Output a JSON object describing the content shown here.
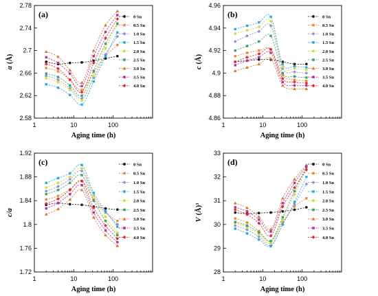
{
  "series_styles": [
    {
      "name": "0 Sn",
      "color": "#1a1a1a",
      "marker": "circle"
    },
    {
      "name": "0.5 Sn",
      "color": "#e88a3c",
      "marker": "square"
    },
    {
      "name": "1.0 Sn",
      "color": "#8e8fd6",
      "marker": "diamond"
    },
    {
      "name": "1.5 Sn",
      "color": "#2aa9e0",
      "marker": "square"
    },
    {
      "name": "2.0 Sn",
      "color": "#d8d63c",
      "marker": "diamond"
    },
    {
      "name": "2.5 Sn",
      "color": "#3d9e6e",
      "marker": "square"
    },
    {
      "name": "3.0 Sn",
      "color": "#d47a2a",
      "marker": "triangle"
    },
    {
      "name": "3.5 Sn",
      "color": "#b0349a",
      "marker": "square"
    },
    {
      "name": "4.0 Sn",
      "color": "#e6262e",
      "marker": "diamond"
    }
  ],
  "chart_data": [
    {
      "type": "line",
      "panel_label": "(a)",
      "title": "",
      "xlabel": "Aging time (h)",
      "ylabel_main": "a",
      "ylabel_unit": "(Å)",
      "xscale": "log",
      "xlim": [
        1,
        1000
      ],
      "ylim": [
        2.58,
        2.78
      ],
      "xticks": [
        1,
        10,
        100
      ],
      "yticks": [
        2.58,
        2.62,
        2.66,
        2.7,
        2.74,
        2.78
      ],
      "yticklabels": [
        "2.58",
        "2.62",
        "2.66",
        "2.7",
        "2.74",
        "2.78"
      ],
      "legend_position": "right",
      "x": [
        2,
        4,
        8,
        16,
        32,
        64,
        128
      ],
      "series": [
        {
          "name": "0 Sn",
          "values": [
            2.68,
            2.676,
            2.678,
            2.679,
            2.682,
            2.686,
            2.69
          ]
        },
        {
          "name": "0.5 Sn",
          "values": [
            2.669,
            2.663,
            2.648,
            2.63,
            2.662,
            2.69,
            2.71
          ]
        },
        {
          "name": "1.0 Sn",
          "values": [
            2.655,
            2.648,
            2.633,
            2.615,
            2.652,
            2.693,
            2.725
          ]
        },
        {
          "name": "1.5 Sn",
          "values": [
            2.64,
            2.634,
            2.621,
            2.604,
            2.645,
            2.69,
            2.732
          ]
        },
        {
          "name": "2.0 Sn",
          "values": [
            2.651,
            2.644,
            2.63,
            2.611,
            2.655,
            2.704,
            2.746
          ]
        },
        {
          "name": "2.5 Sn",
          "values": [
            2.659,
            2.653,
            2.638,
            2.62,
            2.664,
            2.712,
            2.748
          ]
        },
        {
          "name": "3.0 Sn",
          "values": [
            2.698,
            2.689,
            2.665,
            2.643,
            2.7,
            2.745,
            2.77
          ]
        },
        {
          "name": "3.5 Sn",
          "values": [
            2.688,
            2.678,
            2.659,
            2.637,
            2.69,
            2.733,
            2.763
          ]
        },
        {
          "name": "4.0 Sn",
          "values": [
            2.676,
            2.668,
            2.648,
            2.626,
            2.678,
            2.722,
            2.756
          ]
        }
      ]
    },
    {
      "type": "line",
      "panel_label": "(b)",
      "title": "",
      "xlabel": "Aging time (h)",
      "ylabel_main": "c",
      "ylabel_unit": "(Å)",
      "xscale": "log",
      "xlim": [
        1,
        1000
      ],
      "ylim": [
        4.86,
        4.96
      ],
      "xticks": [
        1,
        10,
        100
      ],
      "yticks": [
        4.86,
        4.88,
        4.9,
        4.92,
        4.94,
        4.96
      ],
      "yticklabels": [
        "4.86",
        "4.88",
        "4.9",
        "4.92",
        "4.94",
        "4.96"
      ],
      "legend_position": "right",
      "x": [
        2,
        4,
        8,
        16,
        32,
        64,
        128
      ],
      "series": [
        {
          "name": "0 Sn",
          "values": [
            4.91,
            4.911,
            4.912,
            4.912,
            4.91,
            4.908,
            4.908
          ]
        },
        {
          "name": "0.5 Sn",
          "values": [
            4.915,
            4.918,
            4.92,
            4.921,
            4.898,
            4.894,
            4.893
          ]
        },
        {
          "name": "1.0 Sn",
          "values": [
            4.928,
            4.933,
            4.937,
            4.942,
            4.904,
            4.901,
            4.9
          ]
        },
        {
          "name": "1.5 Sn",
          "values": [
            4.939,
            4.942,
            4.945,
            4.95,
            4.908,
            4.906,
            4.905
          ]
        },
        {
          "name": "2.0 Sn",
          "values": [
            4.935,
            4.938,
            4.941,
            4.946,
            4.906,
            4.904,
            4.903
          ]
        },
        {
          "name": "2.5 Sn",
          "values": [
            4.92,
            4.924,
            4.928,
            4.933,
            4.9,
            4.897,
            4.896
          ]
        },
        {
          "name": "3.0 Sn",
          "values": [
            4.902,
            4.905,
            4.908,
            4.913,
            4.889,
            4.886,
            4.886
          ]
        },
        {
          "name": "3.5 Sn",
          "values": [
            4.907,
            4.911,
            4.914,
            4.918,
            4.892,
            4.889,
            4.889
          ]
        },
        {
          "name": "4.0 Sn",
          "values": [
            4.91,
            4.914,
            4.917,
            4.921,
            4.895,
            4.892,
            4.891
          ]
        }
      ]
    },
    {
      "type": "line",
      "panel_label": "(c)",
      "title": "",
      "xlabel": "Aging time (h)",
      "ylabel_main": "c/a",
      "ylabel_unit": "",
      "xscale": "log",
      "xlim": [
        1,
        1000
      ],
      "ylim": [
        1.72,
        1.92
      ],
      "xticks": [
        1,
        10,
        100
      ],
      "yticks": [
        1.72,
        1.76,
        1.8,
        1.84,
        1.88,
        1.92
      ],
      "yticklabels": [
        "1.72",
        "1.76",
        "1.8",
        "1.84",
        "1.88",
        "1.92"
      ],
      "legend_position": "right",
      "x": [
        2,
        4,
        8,
        16,
        32,
        64,
        128
      ],
      "series": [
        {
          "name": "0 Sn",
          "values": [
            1.833,
            1.836,
            1.834,
            1.833,
            1.83,
            1.827,
            1.825
          ]
        },
        {
          "name": "0.5 Sn",
          "values": [
            1.842,
            1.848,
            1.859,
            1.873,
            1.842,
            1.82,
            1.806
          ]
        },
        {
          "name": "1.0 Sn",
          "values": [
            1.856,
            1.864,
            1.876,
            1.89,
            1.848,
            1.821,
            1.8
          ]
        },
        {
          "name": "1.5 Sn",
          "values": [
            1.87,
            1.878,
            1.886,
            1.9,
            1.853,
            1.823,
            1.796
          ]
        },
        {
          "name": "2.0 Sn",
          "values": [
            1.862,
            1.87,
            1.88,
            1.894,
            1.848,
            1.813,
            1.786
          ]
        },
        {
          "name": "2.5 Sn",
          "values": [
            1.851,
            1.858,
            1.87,
            1.883,
            1.84,
            1.806,
            1.782
          ]
        },
        {
          "name": "3.0 Sn",
          "values": [
            1.817,
            1.826,
            1.842,
            1.858,
            1.812,
            1.782,
            1.764
          ]
        },
        {
          "name": "3.5 Sn",
          "values": [
            1.827,
            1.836,
            1.851,
            1.866,
            1.82,
            1.79,
            1.77
          ]
        },
        {
          "name": "4.0 Sn",
          "values": [
            1.835,
            1.843,
            1.858,
            1.873,
            1.828,
            1.798,
            1.776
          ]
        }
      ]
    },
    {
      "type": "line",
      "panel_label": "(d)",
      "title": "",
      "xlabel": "Aging time (h)",
      "ylabel_main": "V",
      "ylabel_unit": "(Å)³",
      "xscale": "log",
      "xlim": [
        1,
        1000
      ],
      "ylim": [
        28,
        33
      ],
      "xticks": [
        1,
        10,
        100
      ],
      "yticks": [
        28,
        29,
        30,
        31,
        32,
        33
      ],
      "yticklabels": [
        "28",
        "29",
        "30",
        "31",
        "32",
        "33"
      ],
      "legend_position": "right",
      "x": [
        2,
        4,
        8,
        16,
        32,
        64,
        128
      ],
      "series": [
        {
          "name": "0 Sn",
          "values": [
            30.5,
            30.45,
            30.48,
            30.5,
            30.55,
            30.62,
            30.72
          ]
        },
        {
          "name": "0.5 Sn",
          "values": [
            30.25,
            30.08,
            29.72,
            29.3,
            30.1,
            30.75,
            31.1
          ]
        },
        {
          "name": "1.0 Sn",
          "values": [
            29.95,
            29.78,
            29.48,
            29.12,
            30.0,
            30.85,
            31.7
          ]
        },
        {
          "name": "1.5 Sn",
          "values": [
            29.82,
            29.62,
            29.36,
            29.08,
            30.0,
            30.95,
            32.0
          ]
        },
        {
          "name": "2.0 Sn",
          "values": [
            30.05,
            29.88,
            29.58,
            29.2,
            30.2,
            31.25,
            32.3
          ]
        },
        {
          "name": "2.5 Sn",
          "values": [
            30.1,
            29.95,
            29.66,
            29.3,
            30.3,
            31.4,
            32.4
          ]
        },
        {
          "name": "3.0 Sn",
          "values": [
            30.9,
            30.7,
            30.32,
            29.8,
            31.1,
            31.9,
            32.5
          ]
        },
        {
          "name": "3.5 Sn",
          "values": [
            30.72,
            30.55,
            30.2,
            29.7,
            30.9,
            31.75,
            32.45
          ]
        },
        {
          "name": "4.0 Sn",
          "values": [
            30.62,
            30.42,
            30.05,
            29.52,
            30.75,
            31.55,
            32.3
          ]
        }
      ]
    }
  ]
}
